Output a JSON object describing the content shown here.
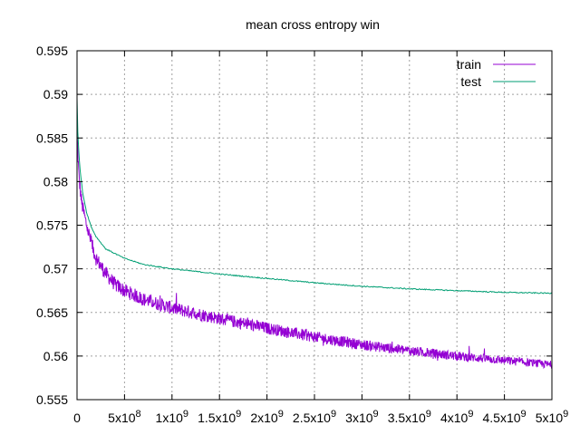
{
  "chart_data": {
    "type": "line",
    "title": "mean cross entropy win",
    "xlabel": "",
    "ylabel": "",
    "xlim": [
      0,
      5000000000
    ],
    "ylim": [
      0.555,
      0.595
    ],
    "grid": true,
    "legend_position": "top-right",
    "y_ticks": [
      "0.555",
      "0.56",
      "0.565",
      "0.57",
      "0.575",
      "0.58",
      "0.585",
      "0.59",
      "0.595"
    ],
    "x_ticks": [
      {
        "base": "0",
        "exp": ""
      },
      {
        "base": "5x10",
        "exp": "8"
      },
      {
        "base": "1x10",
        "exp": "9"
      },
      {
        "base": "1.5x10",
        "exp": "9"
      },
      {
        "base": "2x10",
        "exp": "9"
      },
      {
        "base": "2.5x10",
        "exp": "9"
      },
      {
        "base": "3x10",
        "exp": "9"
      },
      {
        "base": "3.5x10",
        "exp": "9"
      },
      {
        "base": "4x10",
        "exp": "9"
      },
      {
        "base": "4.5x10",
        "exp": "9"
      },
      {
        "base": "5x10",
        "exp": "9"
      }
    ],
    "series": [
      {
        "name": "train",
        "color": "#9400d3",
        "noisy": true,
        "x": [
          0,
          20000000,
          50000000,
          100000000,
          150000000,
          200000000,
          300000000,
          400000000,
          500000000,
          700000000,
          1000000000,
          1500000000,
          2000000000,
          2500000000,
          3000000000,
          3500000000,
          4000000000,
          4500000000,
          5000000000
        ],
        "y": [
          0.5855,
          0.5805,
          0.5775,
          0.575,
          0.573,
          0.5712,
          0.5695,
          0.5682,
          0.5675,
          0.5665,
          0.5655,
          0.5643,
          0.5632,
          0.5622,
          0.5613,
          0.5606,
          0.56,
          0.5595,
          0.559
        ]
      },
      {
        "name": "test",
        "color": "#009e73",
        "noisy": false,
        "x": [
          0,
          10000000,
          30000000,
          60000000,
          100000000,
          150000000,
          200000000,
          300000000,
          500000000,
          700000000,
          1000000000,
          1500000000,
          2000000000,
          2500000000,
          3000000000,
          3500000000,
          4000000000,
          4500000000,
          5000000000
        ],
        "y": [
          0.5895,
          0.585,
          0.5815,
          0.5787,
          0.5765,
          0.5748,
          0.5737,
          0.5723,
          0.5712,
          0.5705,
          0.57,
          0.5694,
          0.5689,
          0.5684,
          0.568,
          0.5677,
          0.5675,
          0.5673,
          0.5672
        ]
      }
    ]
  }
}
